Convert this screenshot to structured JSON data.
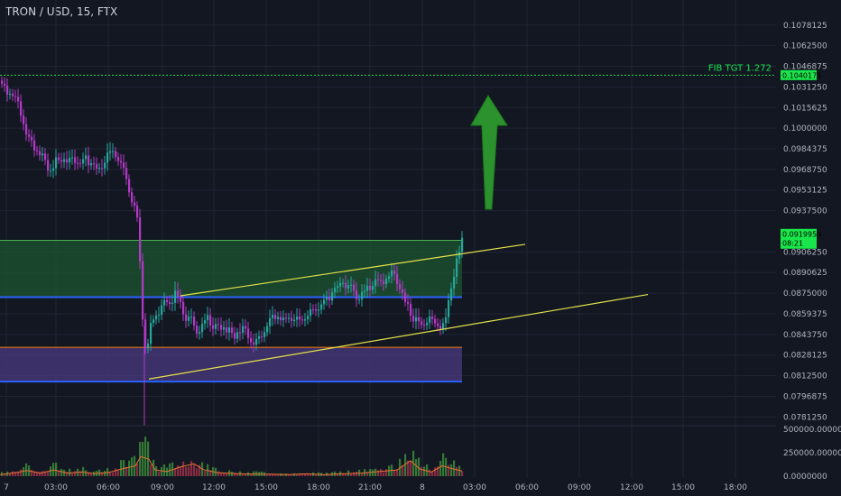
{
  "header": {
    "symbol_title": "TRON / USD, 15, FTX"
  },
  "colors": {
    "background": "#131722",
    "bull": "#26a69a",
    "bear": "#b33ac7",
    "trendline": "#e6e24a",
    "fib_line": "#19e64a",
    "upper_zone": "#1e5631",
    "lower_zone": "#4a3a80",
    "arrow": "#2fa02f"
  },
  "annotations": {
    "fib_label": "FIB TGT 1.272",
    "fib_price": "0.1040175",
    "current_price": "0.0919950",
    "countdown": "08:21"
  },
  "chart_data": {
    "type": "candlestick",
    "title": "TRON / USD, 15, FTX",
    "price_axis": {
      "ticks": [
        "0.1078125",
        "0.1062500",
        "0.1046875",
        "0.1031250",
        "0.1015625",
        "0.1000000",
        "0.0984375",
        "0.0968750",
        "0.0953125",
        "0.0937500",
        "0.0906250",
        "0.0890625",
        "0.0875000",
        "0.0859375",
        "0.0843750",
        "0.0828125",
        "0.0812500",
        "0.0796875",
        "0.0781250"
      ],
      "tick_values": [
        0.1078125,
        0.10625,
        0.1046875,
        0.103125,
        0.1015625,
        0.1,
        0.0984375,
        0.096875,
        0.0953125,
        0.09375,
        0.090625,
        0.0890625,
        0.0875,
        0.0859375,
        0.084375,
        0.0828125,
        0.08125,
        0.0796875,
        0.078125
      ],
      "range": [
        0.0776,
        0.1093
      ]
    },
    "time_axis": {
      "labels": [
        "7",
        "03:00",
        "06:00",
        "09:00",
        "12:00",
        "15:00",
        "18:00",
        "21:00",
        "8",
        "03:00",
        "06:00",
        "09:00",
        "12:00",
        "15:00",
        "18:00"
      ]
    },
    "volume_axis": {
      "ticks": [
        "500000.0000000",
        "250000.0000000",
        "0.0000000"
      ],
      "tick_values": [
        500000,
        250000,
        0
      ],
      "range": [
        0,
        520000
      ]
    },
    "close_path": [
      [
        0,
        0.1036
      ],
      [
        4,
        0.1031
      ],
      [
        8,
        0.1028
      ],
      [
        13,
        0.1026
      ],
      [
        18,
        0.1021
      ],
      [
        24,
        0.101
      ],
      [
        30,
        0.0995
      ],
      [
        36,
        0.0987
      ],
      [
        42,
        0.0982
      ],
      [
        48,
        0.0978
      ],
      [
        54,
        0.0968
      ],
      [
        60,
        0.0974
      ],
      [
        66,
        0.0976
      ],
      [
        72,
        0.0979
      ],
      [
        78,
        0.0974
      ],
      [
        84,
        0.0977
      ],
      [
        90,
        0.0973
      ],
      [
        96,
        0.0977
      ],
      [
        102,
        0.0973
      ],
      [
        108,
        0.0966
      ],
      [
        114,
        0.0975
      ],
      [
        120,
        0.0978
      ],
      [
        126,
        0.098
      ],
      [
        132,
        0.0975
      ],
      [
        138,
        0.0965
      ],
      [
        143,
        0.0952
      ],
      [
        147,
        0.0942
      ],
      [
        150,
        0.0938
      ],
      [
        152,
        0.0932
      ],
      [
        154,
        0.0925
      ],
      [
        156,
        0.0866
      ],
      [
        158,
        0.0858
      ],
      [
        160,
        0.085
      ],
      [
        162,
        0.082
      ],
      [
        164,
        0.0836
      ],
      [
        166,
        0.0847
      ],
      [
        168,
        0.0852
      ],
      [
        172,
        0.0858
      ],
      [
        176,
        0.0862
      ],
      [
        182,
        0.0867
      ],
      [
        188,
        0.0869
      ],
      [
        194,
        0.0873
      ],
      [
        200,
        0.0866
      ],
      [
        206,
        0.0857
      ],
      [
        212,
        0.0854
      ],
      [
        218,
        0.0845
      ],
      [
        224,
        0.085
      ],
      [
        230,
        0.0855
      ],
      [
        236,
        0.0851
      ],
      [
        242,
        0.0849
      ],
      [
        248,
        0.0851
      ],
      [
        254,
        0.0845
      ],
      [
        260,
        0.0842
      ],
      [
        266,
        0.0849
      ],
      [
        272,
        0.0846
      ],
      [
        278,
        0.084
      ],
      [
        284,
        0.0839
      ],
      [
        290,
        0.0843
      ],
      [
        296,
        0.085
      ],
      [
        302,
        0.0855
      ],
      [
        308,
        0.0858
      ],
      [
        314,
        0.0854
      ],
      [
        320,
        0.0857
      ],
      [
        326,
        0.0856
      ],
      [
        332,
        0.0852
      ],
      [
        338,
        0.0857
      ],
      [
        344,
        0.0861
      ],
      [
        350,
        0.0863
      ],
      [
        356,
        0.0867
      ],
      [
        362,
        0.087
      ],
      [
        368,
        0.0876
      ],
      [
        374,
        0.0879
      ],
      [
        380,
        0.0883
      ],
      [
        386,
        0.088
      ],
      [
        392,
        0.0876
      ],
      [
        398,
        0.0871
      ],
      [
        404,
        0.0875
      ],
      [
        410,
        0.088
      ],
      [
        416,
        0.0882
      ],
      [
        422,
        0.0883
      ],
      [
        428,
        0.0886
      ],
      [
        434,
        0.0889
      ],
      [
        440,
        0.0885
      ],
      [
        446,
        0.0872
      ],
      [
        452,
        0.0864
      ],
      [
        458,
        0.0856
      ],
      [
        464,
        0.085
      ],
      [
        470,
        0.0852
      ],
      [
        476,
        0.0855
      ],
      [
        482,
        0.0852
      ],
      [
        488,
        0.085
      ],
      [
        494,
        0.0853
      ],
      [
        498,
        0.0872
      ],
      [
        502,
        0.0888
      ],
      [
        506,
        0.0898
      ],
      [
        509,
        0.0905
      ],
      [
        512,
        0.0919
      ]
    ],
    "volume_path": [
      [
        0,
        30000
      ],
      [
        18,
        70000
      ],
      [
        30,
        110000
      ],
      [
        45,
        60000
      ],
      [
        60,
        120000
      ],
      [
        75,
        60000
      ],
      [
        90,
        80000
      ],
      [
        105,
        50000
      ],
      [
        120,
        70000
      ],
      [
        135,
        140000
      ],
      [
        150,
        200000
      ],
      [
        156,
        380000
      ],
      [
        165,
        330000
      ],
      [
        172,
        120000
      ],
      [
        185,
        90000
      ],
      [
        200,
        180000
      ],
      [
        215,
        240000
      ],
      [
        225,
        130000
      ],
      [
        240,
        70000
      ],
      [
        260,
        50000
      ],
      [
        280,
        40000
      ],
      [
        300,
        40000
      ],
      [
        320,
        30000
      ],
      [
        340,
        45000
      ],
      [
        360,
        30000
      ],
      [
        380,
        45000
      ],
      [
        400,
        60000
      ],
      [
        420,
        90000
      ],
      [
        440,
        120000
      ],
      [
        455,
        300000
      ],
      [
        465,
        140000
      ],
      [
        478,
        80000
      ],
      [
        490,
        200000
      ],
      [
        500,
        150000
      ],
      [
        512,
        100000
      ]
    ],
    "zones": [
      {
        "name": "upper",
        "x": [
          0,
          512
        ],
        "top": 0.0915,
        "bottom": 0.0872,
        "color": "#1e5631"
      },
      {
        "name": "lower",
        "x": [
          0,
          512
        ],
        "top": 0.0834,
        "bottom": 0.0808,
        "color": "#4a3a80"
      }
    ],
    "trendlines": [
      {
        "from": [
          200,
          0.0873
        ],
        "to": [
          582,
          0.0912
        ]
      },
      {
        "from": [
          165,
          0.081
        ],
        "to": [
          718,
          0.0874
        ]
      }
    ],
    "fib_target": 0.1040175,
    "last_price": 0.091995,
    "grid": true
  }
}
